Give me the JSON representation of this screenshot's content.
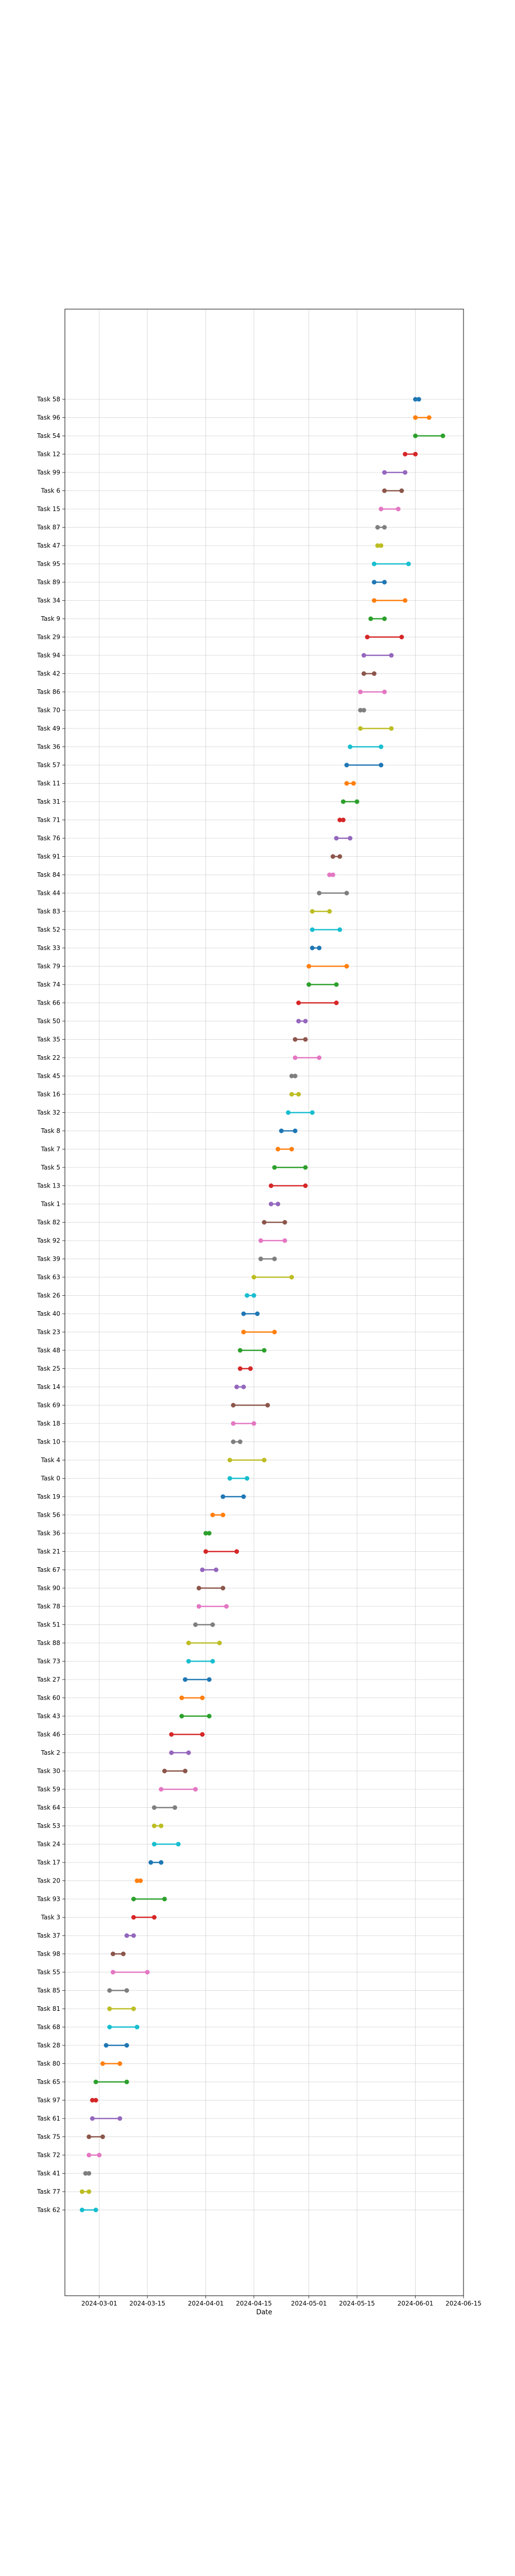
{
  "chart_data": {
    "type": "dumbbell",
    "xlabel": "Date",
    "grid": true,
    "xlim": [
      "2024-02-20",
      "2024-06-15"
    ],
    "xticks": [
      "2024-03-01",
      "2024-03-15",
      "2024-04-01",
      "2024-04-15",
      "2024-05-01",
      "2024-05-15",
      "2024-06-01",
      "2024-06-15"
    ],
    "palette": [
      "#1f77b4",
      "#ff7f0e",
      "#2ca02c",
      "#d62728",
      "#9467bd",
      "#8c564b",
      "#e377c2",
      "#7f7f7f",
      "#bcbd22",
      "#17becf"
    ],
    "tasks": [
      {
        "name": "Task 58",
        "start": "2024-06-01",
        "end": "2024-06-02"
      },
      {
        "name": "Task 96",
        "start": "2024-06-01",
        "end": "2024-06-05"
      },
      {
        "name": "Task 54",
        "start": "2024-06-01",
        "end": "2024-06-09"
      },
      {
        "name": "Task 12",
        "start": "2024-05-29",
        "end": "2024-06-01"
      },
      {
        "name": "Task 99",
        "start": "2024-05-23",
        "end": "2024-05-29"
      },
      {
        "name": "Task 6",
        "start": "2024-05-23",
        "end": "2024-05-28"
      },
      {
        "name": "Task 15",
        "start": "2024-05-22",
        "end": "2024-05-27"
      },
      {
        "name": "Task 87",
        "start": "2024-05-21",
        "end": "2024-05-23"
      },
      {
        "name": "Task 47",
        "start": "2024-05-21",
        "end": "2024-05-22"
      },
      {
        "name": "Task 95",
        "start": "2024-05-20",
        "end": "2024-05-30"
      },
      {
        "name": "Task 89",
        "start": "2024-05-20",
        "end": "2024-05-23"
      },
      {
        "name": "Task 34",
        "start": "2024-05-20",
        "end": "2024-05-29"
      },
      {
        "name": "Task 9",
        "start": "2024-05-19",
        "end": "2024-05-23"
      },
      {
        "name": "Task 29",
        "start": "2024-05-18",
        "end": "2024-05-28"
      },
      {
        "name": "Task 94",
        "start": "2024-05-17",
        "end": "2024-05-25"
      },
      {
        "name": "Task 42",
        "start": "2024-05-17",
        "end": "2024-05-20"
      },
      {
        "name": "Task 86",
        "start": "2024-05-16",
        "end": "2024-05-23"
      },
      {
        "name": "Task 70",
        "start": "2024-05-16",
        "end": "2024-05-17"
      },
      {
        "name": "Task 49",
        "start": "2024-05-16",
        "end": "2024-05-25"
      },
      {
        "name": "Task 36",
        "start": "2024-05-13",
        "end": "2024-05-22"
      },
      {
        "name": "Task 57",
        "start": "2024-05-12",
        "end": "2024-05-22"
      },
      {
        "name": "Task 11",
        "start": "2024-05-12",
        "end": "2024-05-14"
      },
      {
        "name": "Task 31",
        "start": "2024-05-11",
        "end": "2024-05-15"
      },
      {
        "name": "Task 71",
        "start": "2024-05-10",
        "end": "2024-05-11"
      },
      {
        "name": "Task 76",
        "start": "2024-05-09",
        "end": "2024-05-13"
      },
      {
        "name": "Task 91",
        "start": "2024-05-08",
        "end": "2024-05-10"
      },
      {
        "name": "Task 84",
        "start": "2024-05-07",
        "end": "2024-05-08"
      },
      {
        "name": "Task 44",
        "start": "2024-05-04",
        "end": "2024-05-12"
      },
      {
        "name": "Task 83",
        "start": "2024-05-02",
        "end": "2024-05-07"
      },
      {
        "name": "Task 52",
        "start": "2024-05-02",
        "end": "2024-05-10"
      },
      {
        "name": "Task 33",
        "start": "2024-05-02",
        "end": "2024-05-04"
      },
      {
        "name": "Task 79",
        "start": "2024-05-01",
        "end": "2024-05-12"
      },
      {
        "name": "Task 74",
        "start": "2024-05-01",
        "end": "2024-05-09"
      },
      {
        "name": "Task 66",
        "start": "2024-04-28",
        "end": "2024-05-09"
      },
      {
        "name": "Task 50",
        "start": "2024-04-28",
        "end": "2024-04-30"
      },
      {
        "name": "Task 35",
        "start": "2024-04-27",
        "end": "2024-04-30"
      },
      {
        "name": "Task 22",
        "start": "2024-04-27",
        "end": "2024-05-04"
      },
      {
        "name": "Task 45",
        "start": "2024-04-26",
        "end": "2024-04-27"
      },
      {
        "name": "Task 16",
        "start": "2024-04-26",
        "end": "2024-04-28"
      },
      {
        "name": "Task 32",
        "start": "2024-04-25",
        "end": "2024-05-02"
      },
      {
        "name": "Task 8",
        "start": "2024-04-23",
        "end": "2024-04-27"
      },
      {
        "name": "Task 7",
        "start": "2024-04-22",
        "end": "2024-04-26"
      },
      {
        "name": "Task 5",
        "start": "2024-04-21",
        "end": "2024-04-30"
      },
      {
        "name": "Task 13",
        "start": "2024-04-20",
        "end": "2024-04-30"
      },
      {
        "name": "Task 1",
        "start": "2024-04-20",
        "end": "2024-04-22"
      },
      {
        "name": "Task 82",
        "start": "2024-04-18",
        "end": "2024-04-24"
      },
      {
        "name": "Task 92",
        "start": "2024-04-17",
        "end": "2024-04-24"
      },
      {
        "name": "Task 39",
        "start": "2024-04-17",
        "end": "2024-04-21"
      },
      {
        "name": "Task 63",
        "start": "2024-04-15",
        "end": "2024-04-26"
      },
      {
        "name": "Task 26",
        "start": "2024-04-13",
        "end": "2024-04-15"
      },
      {
        "name": "Task 40",
        "start": "2024-04-12",
        "end": "2024-04-16"
      },
      {
        "name": "Task 23",
        "start": "2024-04-12",
        "end": "2024-04-21"
      },
      {
        "name": "Task 48",
        "start": "2024-04-11",
        "end": "2024-04-18"
      },
      {
        "name": "Task 25",
        "start": "2024-04-11",
        "end": "2024-04-14"
      },
      {
        "name": "Task 14",
        "start": "2024-04-10",
        "end": "2024-04-12"
      },
      {
        "name": "Task 69",
        "start": "2024-04-09",
        "end": "2024-04-19"
      },
      {
        "name": "Task 18",
        "start": "2024-04-09",
        "end": "2024-04-15"
      },
      {
        "name": "Task 10",
        "start": "2024-04-09",
        "end": "2024-04-11"
      },
      {
        "name": "Task 4",
        "start": "2024-04-08",
        "end": "2024-04-18"
      },
      {
        "name": "Task 0",
        "start": "2024-04-08",
        "end": "2024-04-13"
      },
      {
        "name": "Task 19",
        "start": "2024-04-06",
        "end": "2024-04-12"
      },
      {
        "name": "Task 56",
        "start": "2024-04-03",
        "end": "2024-04-06"
      },
      {
        "name": "Task 36",
        "start": "2024-04-01",
        "end": "2024-04-02"
      },
      {
        "name": "Task 21",
        "start": "2024-04-01",
        "end": "2024-04-10"
      },
      {
        "name": "Task 67",
        "start": "2024-03-31",
        "end": "2024-04-04"
      },
      {
        "name": "Task 90",
        "start": "2024-03-30",
        "end": "2024-04-06"
      },
      {
        "name": "Task 78",
        "start": "2024-03-30",
        "end": "2024-04-07"
      },
      {
        "name": "Task 51",
        "start": "2024-03-29",
        "end": "2024-04-03"
      },
      {
        "name": "Task 88",
        "start": "2024-03-27",
        "end": "2024-04-05"
      },
      {
        "name": "Task 73",
        "start": "2024-03-27",
        "end": "2024-04-03"
      },
      {
        "name": "Task 27",
        "start": "2024-03-26",
        "end": "2024-04-02"
      },
      {
        "name": "Task 60",
        "start": "2024-03-25",
        "end": "2024-03-31"
      },
      {
        "name": "Task 43",
        "start": "2024-03-25",
        "end": "2024-04-02"
      },
      {
        "name": "Task 46",
        "start": "2024-03-22",
        "end": "2024-03-31"
      },
      {
        "name": "Task 2",
        "start": "2024-03-22",
        "end": "2024-03-27"
      },
      {
        "name": "Task 30",
        "start": "2024-03-20",
        "end": "2024-03-26"
      },
      {
        "name": "Task 59",
        "start": "2024-03-19",
        "end": "2024-03-29"
      },
      {
        "name": "Task 64",
        "start": "2024-03-17",
        "end": "2024-03-23"
      },
      {
        "name": "Task 53",
        "start": "2024-03-17",
        "end": "2024-03-19"
      },
      {
        "name": "Task 24",
        "start": "2024-03-17",
        "end": "2024-03-24"
      },
      {
        "name": "Task 17",
        "start": "2024-03-16",
        "end": "2024-03-19"
      },
      {
        "name": "Task 20",
        "start": "2024-03-12",
        "end": "2024-03-13"
      },
      {
        "name": "Task 93",
        "start": "2024-03-11",
        "end": "2024-03-20"
      },
      {
        "name": "Task 3",
        "start": "2024-03-11",
        "end": "2024-03-17"
      },
      {
        "name": "Task 37",
        "start": "2024-03-09",
        "end": "2024-03-11"
      },
      {
        "name": "Task 98",
        "start": "2024-03-05",
        "end": "2024-03-08"
      },
      {
        "name": "Task 55",
        "start": "2024-03-05",
        "end": "2024-03-15"
      },
      {
        "name": "Task 85",
        "start": "2024-03-04",
        "end": "2024-03-09"
      },
      {
        "name": "Task 81",
        "start": "2024-03-04",
        "end": "2024-03-11"
      },
      {
        "name": "Task 68",
        "start": "2024-03-04",
        "end": "2024-03-12"
      },
      {
        "name": "Task 28",
        "start": "2024-03-03",
        "end": "2024-03-09"
      },
      {
        "name": "Task 80",
        "start": "2024-03-02",
        "end": "2024-03-07"
      },
      {
        "name": "Task 65",
        "start": "2024-02-29",
        "end": "2024-03-09"
      },
      {
        "name": "Task 97",
        "start": "2024-02-28",
        "end": "2024-02-29"
      },
      {
        "name": "Task 61",
        "start": "2024-02-28",
        "end": "2024-03-07"
      },
      {
        "name": "Task 75",
        "start": "2024-02-27",
        "end": "2024-03-02"
      },
      {
        "name": "Task 72",
        "start": "2024-02-27",
        "end": "2024-03-01"
      },
      {
        "name": "Task 41",
        "start": "2024-02-26",
        "end": "2024-02-27"
      },
      {
        "name": "Task 77",
        "start": "2024-02-25",
        "end": "2024-02-27"
      },
      {
        "name": "Task 62",
        "start": "2024-02-25",
        "end": "2024-02-29"
      }
    ]
  }
}
